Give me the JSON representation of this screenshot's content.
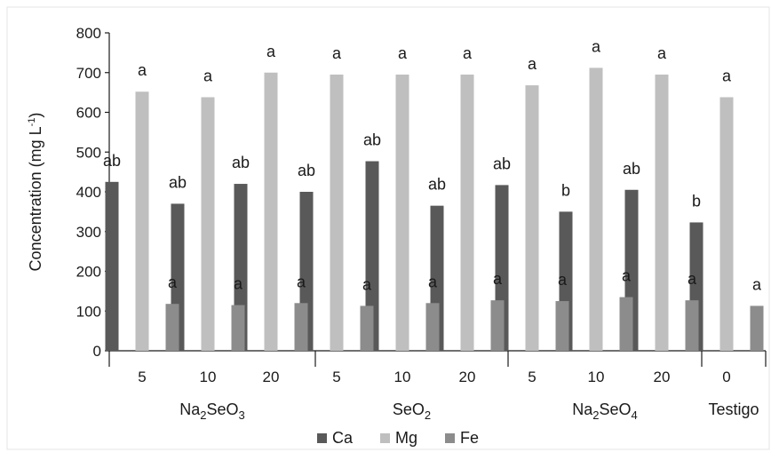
{
  "chart_data": {
    "type": "bar",
    "title": "",
    "xlabel": "",
    "ylabel": "Concentration (mg L",
    "ylabel_sup": "-1",
    "ylabel_close": ")",
    "ylim": [
      0,
      800
    ],
    "yticks": [
      0,
      100,
      200,
      300,
      400,
      500,
      600,
      700,
      800
    ],
    "grid": false,
    "legend_position": "bottom",
    "groups": [
      {
        "base": "Na",
        "sub1": "2",
        "mid": "SeO",
        "sub2": "3",
        "doses": [
          "5",
          "10",
          "20"
        ]
      },
      {
        "base": "",
        "sub1": "",
        "mid": "SeO",
        "sub2": "2",
        "doses": [
          "5",
          "10",
          "20"
        ]
      },
      {
        "base": "Na",
        "sub1": "2",
        "mid": "SeO",
        "sub2": "4",
        "doses": [
          "5",
          "10",
          "20"
        ]
      },
      {
        "base": "",
        "sub1": "",
        "mid": "Testigo",
        "sub2": "",
        "doses": [
          "0"
        ]
      }
    ],
    "series": [
      {
        "name": "Ca",
        "color": "#595959",
        "values": [
          425,
          370,
          420,
          400,
          477,
          365,
          417,
          350,
          405,
          323
        ],
        "labels": [
          "ab",
          "ab",
          "ab",
          "ab",
          "ab",
          "ab",
          "ab",
          "b",
          "ab",
          "b"
        ]
      },
      {
        "name": "Mg",
        "color": "#bfbfbf",
        "values": [
          652,
          638,
          700,
          695,
          695,
          695,
          668,
          712,
          695,
          638
        ],
        "labels": [
          "a",
          "a",
          "a",
          "a",
          "a",
          "a",
          "a",
          "a",
          "a",
          "a"
        ]
      },
      {
        "name": "Fe",
        "color": "#8c8c8c",
        "values": [
          118,
          115,
          120,
          113,
          120,
          127,
          125,
          135,
          127,
          113
        ],
        "labels": [
          "a",
          "a",
          "a",
          "a",
          "a",
          "a",
          "a",
          "a",
          "a",
          "a"
        ]
      }
    ]
  }
}
